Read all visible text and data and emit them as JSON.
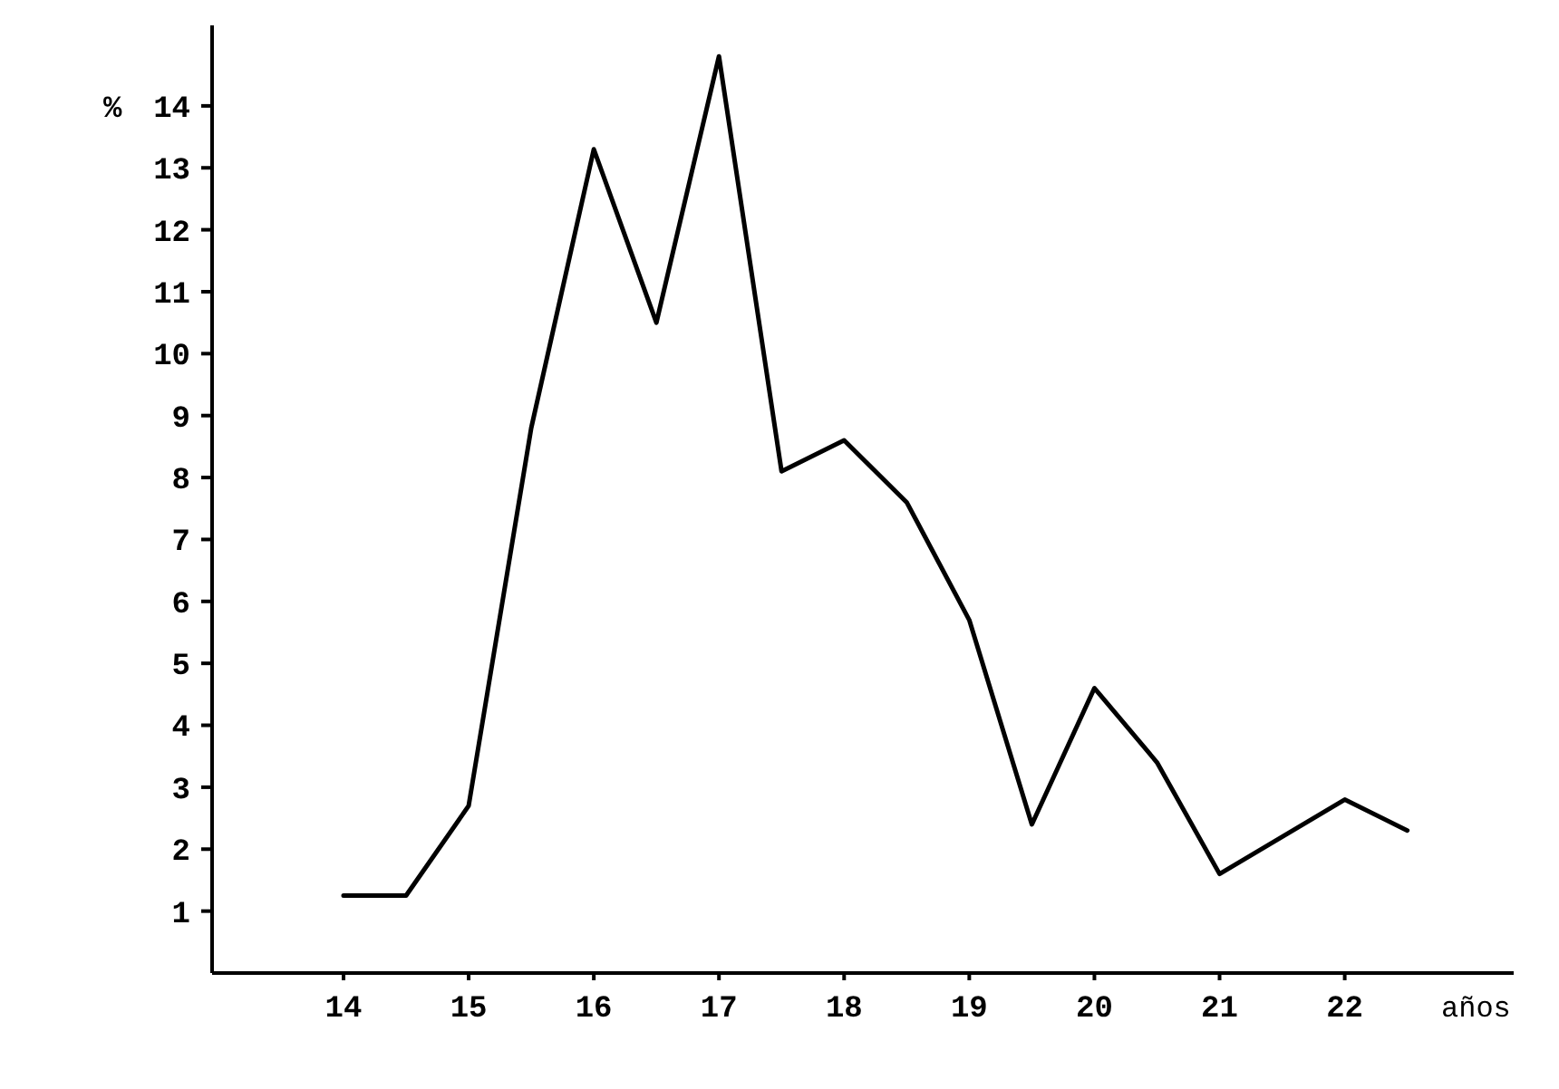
{
  "chart_data": {
    "type": "line",
    "xlabel": "años",
    "ylabel": "%",
    "x": [
      14,
      14.5,
      15,
      15.5,
      16,
      16.5,
      17,
      17.5,
      18,
      18.5,
      19,
      19.5,
      20,
      20.5,
      21,
      22,
      22.5
    ],
    "series": [
      {
        "color": "#000000",
        "values": [
          1.25,
          1.25,
          2.7,
          8.8,
          13.3,
          10.5,
          14.8,
          8.1,
          8.6,
          7.6,
          5.7,
          2.4,
          4.6,
          3.4,
          1.6,
          2.8,
          2.3
        ]
      }
    ],
    "xlim": [
      12.95,
      23.35
    ],
    "ylim": [
      0,
      15.3
    ],
    "xticks": [
      14,
      15,
      16,
      17,
      18,
      19,
      20,
      21,
      22
    ],
    "yticks": [
      1,
      2,
      3,
      4,
      5,
      6,
      7,
      8,
      9,
      10,
      11,
      12,
      13,
      14
    ],
    "grid": false,
    "marker": "none",
    "line_style": "solid"
  }
}
